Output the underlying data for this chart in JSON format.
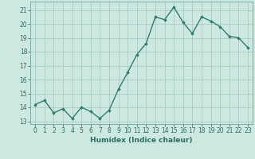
{
  "x": [
    0,
    1,
    2,
    3,
    4,
    5,
    6,
    7,
    8,
    9,
    10,
    11,
    12,
    13,
    14,
    15,
    16,
    17,
    18,
    19,
    20,
    21,
    22,
    23
  ],
  "y": [
    14.2,
    14.5,
    13.6,
    13.9,
    13.2,
    14.0,
    13.7,
    13.2,
    13.8,
    15.3,
    16.5,
    17.8,
    18.6,
    20.5,
    20.3,
    21.2,
    20.1,
    19.3,
    20.5,
    20.2,
    19.8,
    19.1,
    19.0,
    18.3
  ],
  "line_color": "#2e7d6e",
  "marker": "D",
  "marker_size": 1.8,
  "bg_color": "#cce8e0",
  "grid_color": "#aaccc4",
  "xlabel": "Humidex (Indice chaleur)",
  "xlim": [
    -0.5,
    23.5
  ],
  "ylim": [
    12.8,
    21.6
  ],
  "yticks": [
    13,
    14,
    15,
    16,
    17,
    18,
    19,
    20,
    21
  ],
  "xticks": [
    0,
    1,
    2,
    3,
    4,
    5,
    6,
    7,
    8,
    9,
    10,
    11,
    12,
    13,
    14,
    15,
    16,
    17,
    18,
    19,
    20,
    21,
    22,
    23
  ],
  "tick_fontsize": 5.5,
  "xlabel_fontsize": 6.5,
  "line_width": 1.0
}
